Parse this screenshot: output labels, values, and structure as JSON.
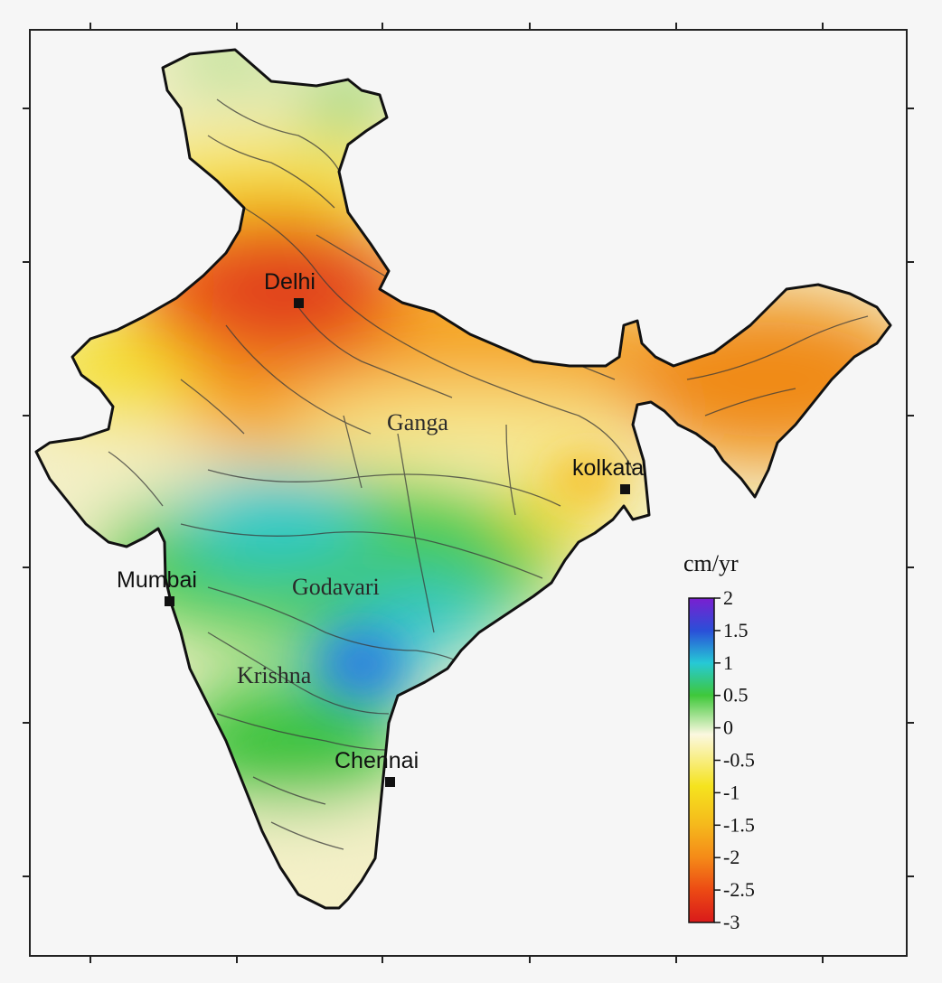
{
  "cities": [
    {
      "name": "Delhi"
    },
    {
      "name": "kolkata"
    },
    {
      "name": "Mumbai"
    },
    {
      "name": "Chennai"
    }
  ],
  "rivers": [
    {
      "name": "Ganga"
    },
    {
      "name": "Godavari"
    },
    {
      "name": "Krishna"
    }
  ],
  "colorbar": {
    "unit": "cm/yr",
    "ticks": [
      "2",
      "1.5",
      "1",
      "0.5",
      "0",
      "-0.5",
      "-1",
      "-1.5",
      "-2",
      "-2.5",
      "-3"
    ],
    "range": [
      -3,
      2
    ],
    "colors": [
      "#d91a1a",
      "#ee6a12",
      "#f5a21a",
      "#f5d51e",
      "#fbf6c8",
      "#2fbf3a",
      "#26c9d6",
      "#2a4fd8",
      "#7a1fd0"
    ]
  }
}
